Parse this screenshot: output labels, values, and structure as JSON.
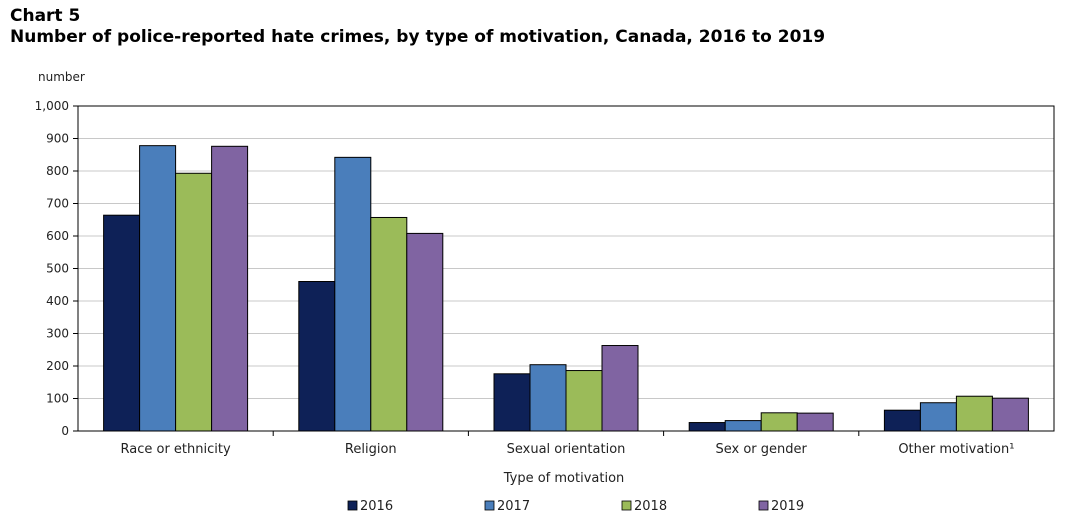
{
  "header": {
    "label": "Chart 5",
    "title": "Number of police-reported hate crimes, by type of motivation, Canada, 2016 to 2019"
  },
  "chart_data": {
    "type": "bar",
    "title": "Number of police-reported hate crimes, by type of motivation, Canada, 2016 to 2019",
    "xlabel": "Type of motivation",
    "ylabel": "number",
    "ylim": [
      0,
      1000
    ],
    "yticks": [
      "0",
      "100",
      "200",
      "300",
      "400",
      "500",
      "600",
      "700",
      "800",
      "900",
      "1,000"
    ],
    "categories": [
      "Race or ethnicity",
      "Religion",
      "Sexual orientation",
      "Sex or gender",
      "Other motivation¹"
    ],
    "series": [
      {
        "name": "2016",
        "color": "#0e2157",
        "values": [
          664,
          460,
          176,
          26,
          64
        ]
      },
      {
        "name": "2017",
        "color": "#4a7ebb",
        "values": [
          878,
          842,
          204,
          32,
          87
        ]
      },
      {
        "name": "2018",
        "color": "#9bbb59",
        "values": [
          793,
          657,
          186,
          56,
          107
        ]
      },
      {
        "name": "2019",
        "color": "#8064a2",
        "values": [
          876,
          608,
          263,
          55,
          101
        ]
      }
    ],
    "grid": true,
    "legend_position": "bottom"
  }
}
